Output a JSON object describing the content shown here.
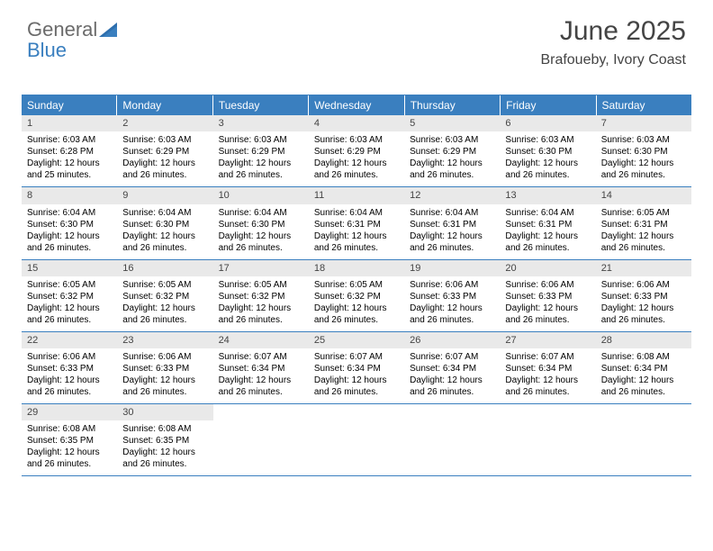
{
  "brand": {
    "part1": "General",
    "part2": "Blue"
  },
  "title": "June 2025",
  "location": "Brafoueby, Ivory Coast",
  "colors": {
    "header_bg": "#3a7fbf",
    "header_text": "#ffffff",
    "daynum_bg": "#e9e9e9",
    "rule": "#3a7fbf",
    "body_text": "#000000",
    "title_text": "#444444"
  },
  "weekday_labels": [
    "Sunday",
    "Monday",
    "Tuesday",
    "Wednesday",
    "Thursday",
    "Friday",
    "Saturday"
  ],
  "days": [
    {
      "n": 1,
      "sunrise": "6:03 AM",
      "sunset": "6:28 PM",
      "daylight": "12 hours and 25 minutes."
    },
    {
      "n": 2,
      "sunrise": "6:03 AM",
      "sunset": "6:29 PM",
      "daylight": "12 hours and 26 minutes."
    },
    {
      "n": 3,
      "sunrise": "6:03 AM",
      "sunset": "6:29 PM",
      "daylight": "12 hours and 26 minutes."
    },
    {
      "n": 4,
      "sunrise": "6:03 AM",
      "sunset": "6:29 PM",
      "daylight": "12 hours and 26 minutes."
    },
    {
      "n": 5,
      "sunrise": "6:03 AM",
      "sunset": "6:29 PM",
      "daylight": "12 hours and 26 minutes."
    },
    {
      "n": 6,
      "sunrise": "6:03 AM",
      "sunset": "6:30 PM",
      "daylight": "12 hours and 26 minutes."
    },
    {
      "n": 7,
      "sunrise": "6:03 AM",
      "sunset": "6:30 PM",
      "daylight": "12 hours and 26 minutes."
    },
    {
      "n": 8,
      "sunrise": "6:04 AM",
      "sunset": "6:30 PM",
      "daylight": "12 hours and 26 minutes."
    },
    {
      "n": 9,
      "sunrise": "6:04 AM",
      "sunset": "6:30 PM",
      "daylight": "12 hours and 26 minutes."
    },
    {
      "n": 10,
      "sunrise": "6:04 AM",
      "sunset": "6:30 PM",
      "daylight": "12 hours and 26 minutes."
    },
    {
      "n": 11,
      "sunrise": "6:04 AM",
      "sunset": "6:31 PM",
      "daylight": "12 hours and 26 minutes."
    },
    {
      "n": 12,
      "sunrise": "6:04 AM",
      "sunset": "6:31 PM",
      "daylight": "12 hours and 26 minutes."
    },
    {
      "n": 13,
      "sunrise": "6:04 AM",
      "sunset": "6:31 PM",
      "daylight": "12 hours and 26 minutes."
    },
    {
      "n": 14,
      "sunrise": "6:05 AM",
      "sunset": "6:31 PM",
      "daylight": "12 hours and 26 minutes."
    },
    {
      "n": 15,
      "sunrise": "6:05 AM",
      "sunset": "6:32 PM",
      "daylight": "12 hours and 26 minutes."
    },
    {
      "n": 16,
      "sunrise": "6:05 AM",
      "sunset": "6:32 PM",
      "daylight": "12 hours and 26 minutes."
    },
    {
      "n": 17,
      "sunrise": "6:05 AM",
      "sunset": "6:32 PM",
      "daylight": "12 hours and 26 minutes."
    },
    {
      "n": 18,
      "sunrise": "6:05 AM",
      "sunset": "6:32 PM",
      "daylight": "12 hours and 26 minutes."
    },
    {
      "n": 19,
      "sunrise": "6:06 AM",
      "sunset": "6:33 PM",
      "daylight": "12 hours and 26 minutes."
    },
    {
      "n": 20,
      "sunrise": "6:06 AM",
      "sunset": "6:33 PM",
      "daylight": "12 hours and 26 minutes."
    },
    {
      "n": 21,
      "sunrise": "6:06 AM",
      "sunset": "6:33 PM",
      "daylight": "12 hours and 26 minutes."
    },
    {
      "n": 22,
      "sunrise": "6:06 AM",
      "sunset": "6:33 PM",
      "daylight": "12 hours and 26 minutes."
    },
    {
      "n": 23,
      "sunrise": "6:06 AM",
      "sunset": "6:33 PM",
      "daylight": "12 hours and 26 minutes."
    },
    {
      "n": 24,
      "sunrise": "6:07 AM",
      "sunset": "6:34 PM",
      "daylight": "12 hours and 26 minutes."
    },
    {
      "n": 25,
      "sunrise": "6:07 AM",
      "sunset": "6:34 PM",
      "daylight": "12 hours and 26 minutes."
    },
    {
      "n": 26,
      "sunrise": "6:07 AM",
      "sunset": "6:34 PM",
      "daylight": "12 hours and 26 minutes."
    },
    {
      "n": 27,
      "sunrise": "6:07 AM",
      "sunset": "6:34 PM",
      "daylight": "12 hours and 26 minutes."
    },
    {
      "n": 28,
      "sunrise": "6:08 AM",
      "sunset": "6:34 PM",
      "daylight": "12 hours and 26 minutes."
    },
    {
      "n": 29,
      "sunrise": "6:08 AM",
      "sunset": "6:35 PM",
      "daylight": "12 hours and 26 minutes."
    },
    {
      "n": 30,
      "sunrise": "6:08 AM",
      "sunset": "6:35 PM",
      "daylight": "12 hours and 26 minutes."
    }
  ],
  "labels": {
    "sunrise": "Sunrise:",
    "sunset": "Sunset:",
    "daylight": "Daylight:"
  }
}
